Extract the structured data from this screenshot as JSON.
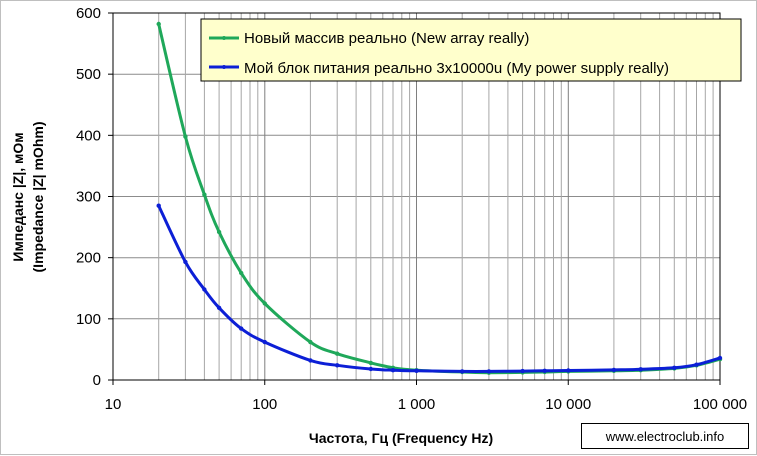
{
  "chart_data": {
    "type": "line",
    "x_scale": "log",
    "xlim": [
      10,
      100000
    ],
    "ylim": [
      0,
      600
    ],
    "x_ticks": [
      10,
      100,
      1000,
      10000,
      100000
    ],
    "x_tick_labels": [
      "10",
      "100",
      "1 000",
      "10 000",
      "100 000"
    ],
    "y_ticks": [
      0,
      100,
      200,
      300,
      400,
      500,
      600
    ],
    "y_tick_labels": [
      "0",
      "100",
      "200",
      "300",
      "400",
      "500",
      "600"
    ],
    "xlabel": "Частота, Гц (Frequency Hz)",
    "ylabel_line1": "Импеданс |Z|, мОм",
    "ylabel_line2": "(Impedance |Z| mOhm)",
    "grid": {
      "horizontal": true,
      "vertical_log_minor": true
    },
    "legend_position": "top-right",
    "series": [
      {
        "name": "Новый массив реально (New array really)",
        "color": "#1fa85a",
        "points": [
          [
            20,
            582
          ],
          [
            30,
            398
          ],
          [
            40,
            303
          ],
          [
            50,
            242
          ],
          [
            70,
            175
          ],
          [
            100,
            125
          ],
          [
            200,
            62
          ],
          [
            300,
            43
          ],
          [
            500,
            28
          ],
          [
            700,
            20
          ],
          [
            1000,
            16
          ],
          [
            2000,
            13
          ],
          [
            3000,
            12
          ],
          [
            5000,
            12.5
          ],
          [
            7000,
            13
          ],
          [
            10000,
            14
          ],
          [
            20000,
            15
          ],
          [
            30000,
            16
          ],
          [
            50000,
            19
          ],
          [
            70000,
            24
          ],
          [
            100000,
            34
          ]
        ]
      },
      {
        "name": "Мой блок питания реально 3x10000u (My power supply really)",
        "color": "#0c1fd6",
        "points": [
          [
            20,
            285
          ],
          [
            30,
            193
          ],
          [
            40,
            148
          ],
          [
            50,
            118
          ],
          [
            70,
            84
          ],
          [
            100,
            62
          ],
          [
            200,
            32
          ],
          [
            300,
            24
          ],
          [
            500,
            18
          ],
          [
            700,
            16
          ],
          [
            1000,
            15
          ],
          [
            2000,
            14
          ],
          [
            3000,
            14
          ],
          [
            5000,
            14.5
          ],
          [
            7000,
            15
          ],
          [
            10000,
            15.5
          ],
          [
            20000,
            16.5
          ],
          [
            30000,
            17.5
          ],
          [
            50000,
            20
          ],
          [
            70000,
            25
          ],
          [
            100000,
            36
          ]
        ]
      }
    ]
  },
  "watermark": "www.electroclub.info"
}
